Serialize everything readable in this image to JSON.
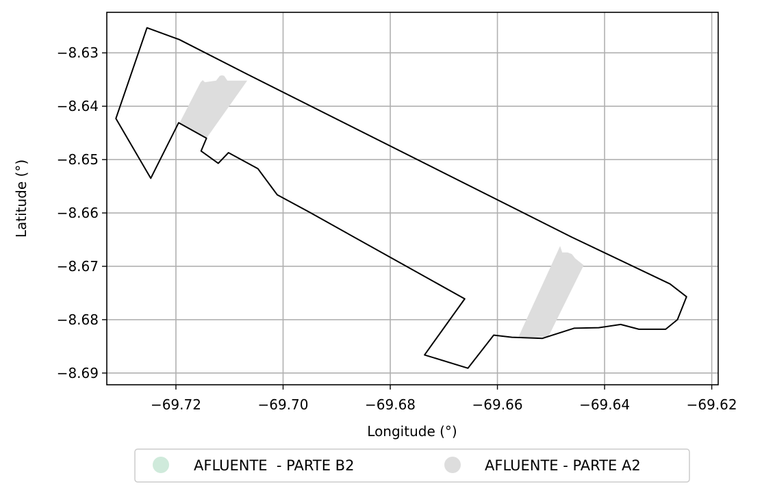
{
  "chart_data": {
    "type": "map",
    "xlabel": "Longitude (°)",
    "ylabel": "Latitude (°)",
    "xlim": [
      -69.7329,
      -69.6188
    ],
    "ylim": [
      -8.6922,
      -8.6224
    ],
    "x_ticks": [
      -69.72,
      -69.7,
      -69.68,
      -69.66,
      -69.64,
      -69.62
    ],
    "x_tick_labels": [
      "−69.72",
      "−69.70",
      "−69.68",
      "−69.66",
      "−69.64",
      "−69.62"
    ],
    "y_ticks": [
      -8.63,
      -8.64,
      -8.65,
      -8.66,
      -8.67,
      -8.68,
      -8.69
    ],
    "y_tick_labels": [
      "−8.63",
      "−8.64",
      "−8.65",
      "−8.66",
      "−8.67",
      "−8.68",
      "−8.69"
    ],
    "grid": true,
    "legend_placement": "bottom-center",
    "boundary": {
      "stroke": "#000000",
      "points": [
        [
          -69.7254,
          -8.6253
        ],
        [
          -69.7194,
          -8.6275
        ],
        [
          -69.7067,
          -8.634
        ],
        [
          -69.6462,
          -8.6645
        ],
        [
          -69.6278,
          -8.6733
        ],
        [
          -69.6247,
          -8.6757
        ],
        [
          -69.6264,
          -8.68
        ],
        [
          -69.6286,
          -8.6818
        ],
        [
          -69.6336,
          -8.6818
        ],
        [
          -69.637,
          -8.6809
        ],
        [
          -69.6411,
          -8.6815
        ],
        [
          -69.6457,
          -8.6816
        ],
        [
          -69.6516,
          -8.6835
        ],
        [
          -69.6573,
          -8.6833
        ],
        [
          -69.6607,
          -8.6829
        ],
        [
          -69.6655,
          -8.6891
        ],
        [
          -69.6736,
          -8.6866
        ],
        [
          -69.6661,
          -8.6761
        ],
        [
          -69.695,
          -8.6599
        ],
        [
          -69.7011,
          -8.6566
        ],
        [
          -69.7047,
          -8.6517
        ],
        [
          -69.7102,
          -8.6487
        ],
        [
          -69.7121,
          -8.6507
        ],
        [
          -69.7153,
          -8.6484
        ],
        [
          -69.7143,
          -8.646
        ],
        [
          -69.7195,
          -8.6431
        ],
        [
          -69.7247,
          -8.6535
        ],
        [
          -69.7312,
          -8.6423
        ]
      ]
    },
    "series": [
      {
        "name": "AFLUENTE  - PARTE B2",
        "color": "#cfeadb",
        "polygons": []
      },
      {
        "name": "AFLUENTE - PARTE A2",
        "color": "#dddddd",
        "polygons": [
          [
            [
              -69.7193,
              -8.6431
            ],
            [
              -69.7154,
              -8.6355
            ],
            [
              -69.715,
              -8.6351
            ],
            [
              -69.7146,
              -8.6355
            ],
            [
              -69.7125,
              -8.6352
            ],
            [
              -69.7118,
              -8.6343
            ],
            [
              -69.7114,
              -8.6342
            ],
            [
              -69.711,
              -8.6343
            ],
            [
              -69.7104,
              -8.6352
            ],
            [
              -69.7067,
              -8.6352
            ],
            [
              -69.7143,
              -8.646
            ]
          ],
          [
            [
              -69.6562,
              -8.6835
            ],
            [
              -69.6483,
              -8.6662
            ],
            [
              -69.6479,
              -8.6674
            ],
            [
              -69.6469,
              -8.6674
            ],
            [
              -69.6461,
              -8.6677
            ],
            [
              -69.6455,
              -8.6685
            ],
            [
              -69.6439,
              -8.6698
            ],
            [
              -69.6505,
              -8.6832
            ]
          ]
        ]
      }
    ]
  }
}
